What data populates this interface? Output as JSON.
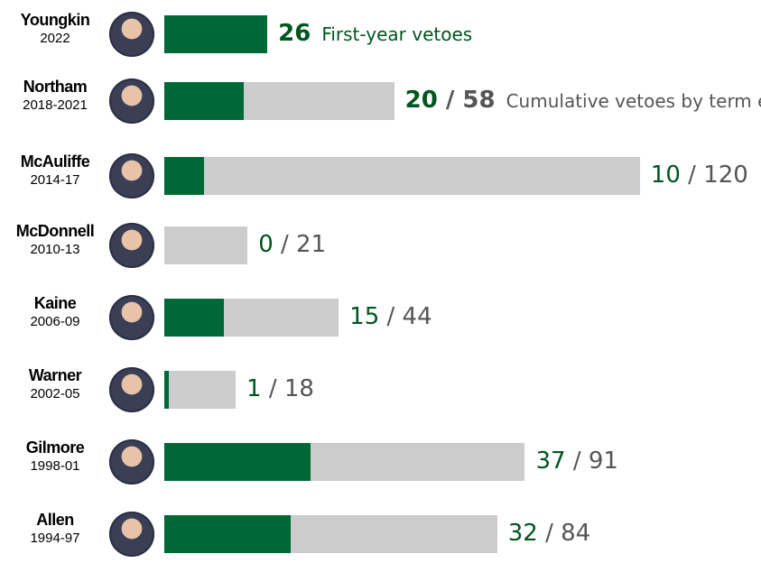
{
  "chart_data": {
    "type": "bar",
    "orientation": "horizontal",
    "series": [
      {
        "name": "First-year vetoes",
        "color": "#006837",
        "values": [
          26,
          20,
          10,
          0,
          15,
          1,
          37,
          32
        ]
      },
      {
        "name": "Cumulative vetoes by term end",
        "color": "#cccccc",
        "values": [
          null,
          58,
          120,
          21,
          44,
          18,
          91,
          84
        ]
      }
    ],
    "categories": [
      {
        "name": "Youngkin",
        "years": "2022"
      },
      {
        "name": "Northam",
        "years": "2018-2021"
      },
      {
        "name": "McAuliffe",
        "years": "2014-17"
      },
      {
        "name": "McDonnell",
        "years": "2010-13"
      },
      {
        "name": "Kaine",
        "years": "2006-09"
      },
      {
        "name": "Warner",
        "years": "2002-05"
      },
      {
        "name": "Gilmore",
        "years": "1998-01"
      },
      {
        "name": "Allen",
        "years": "1994-97"
      }
    ],
    "annotations": {
      "first_year": "First-year vetoes",
      "cumulative": "Cumulative vetoes by term end"
    },
    "separator": "/",
    "grid": false,
    "legend": "inline"
  }
}
